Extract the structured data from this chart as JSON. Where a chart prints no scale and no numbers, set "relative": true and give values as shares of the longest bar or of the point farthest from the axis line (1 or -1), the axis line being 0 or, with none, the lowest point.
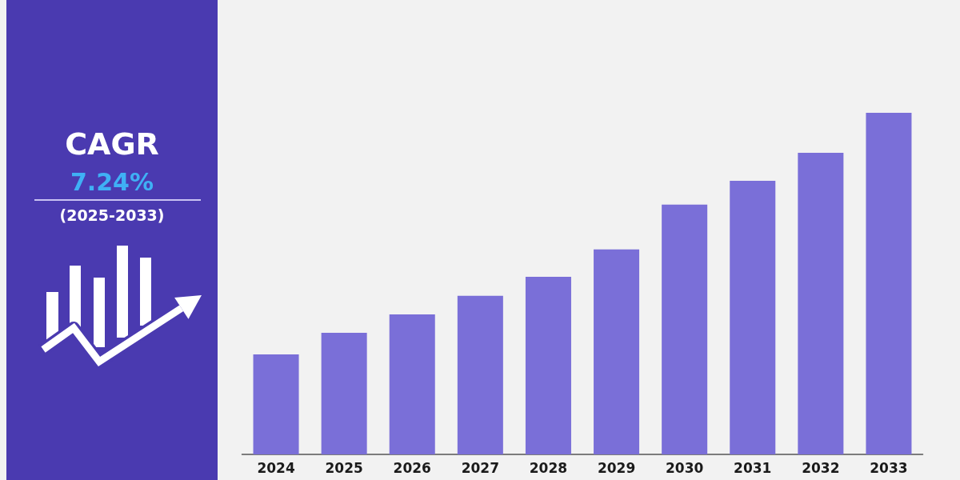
{
  "chart_data": {
    "type": "bar",
    "categories": [
      "2024",
      "2025",
      "2026",
      "2027",
      "2028",
      "2029",
      "2030",
      "2031",
      "2032",
      "2033"
    ],
    "values": [
      0.293,
      0.356,
      0.41,
      0.464,
      0.52,
      0.6,
      0.731,
      0.801,
      0.883,
      1
    ],
    "color": "#7a6fd8",
    "relative": true,
    "annotations": [
      "CAGR",
      "7.24%",
      "(2025-2033)"
    ]
  }
}
